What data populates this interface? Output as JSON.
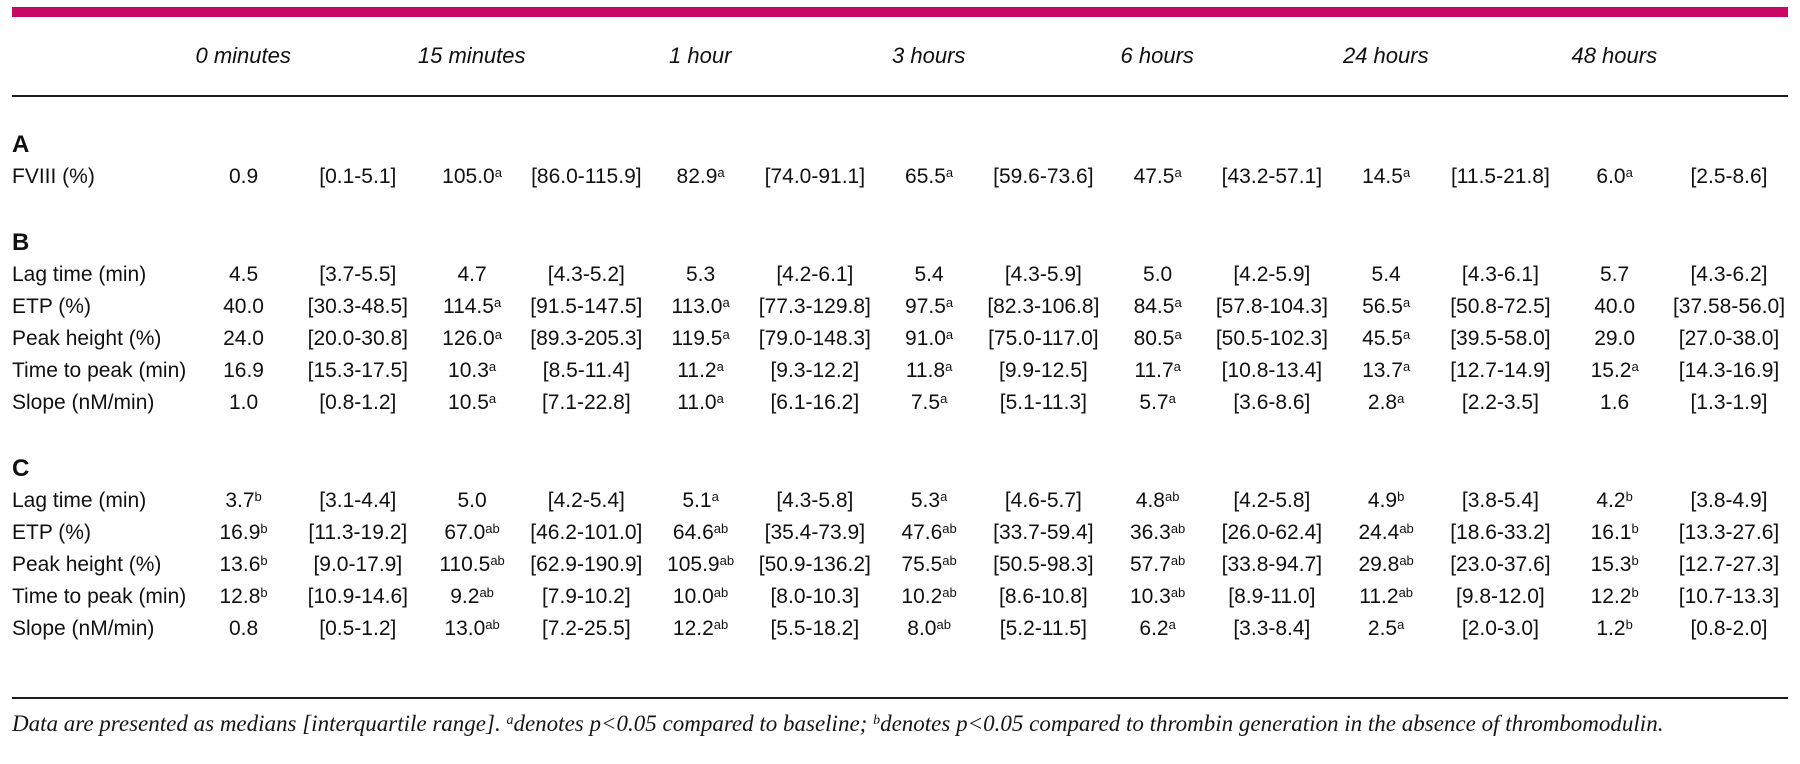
{
  "accent_color": "#C70963",
  "table": {
    "columns": [
      "0 minutes",
      "15 minutes",
      "1 hour",
      "3 hours",
      "6 hours",
      "24 hours",
      "48 hours"
    ],
    "sections": [
      {
        "label": "A",
        "rows": [
          {
            "label": "FVIII (%)",
            "cells": [
              [
                "0.9",
                "",
                "[0.1-5.1]"
              ],
              [
                "105.0",
                "a",
                "[86.0-115.9]"
              ],
              [
                "82.9",
                "a",
                "[74.0-91.1]"
              ],
              [
                "65.5",
                "a",
                "[59.6-73.6]"
              ],
              [
                "47.5",
                "a",
                "[43.2-57.1]"
              ],
              [
                "14.5",
                "a",
                "[11.5-21.8]"
              ],
              [
                "6.0",
                "a",
                "[2.5-8.6]"
              ]
            ]
          }
        ]
      },
      {
        "label": "B",
        "rows": [
          {
            "label": "Lag time (min)",
            "cells": [
              [
                "4.5",
                "",
                "[3.7-5.5]"
              ],
              [
                "4.7",
                "",
                "[4.3-5.2]"
              ],
              [
                "5.3",
                "",
                "[4.2-6.1]"
              ],
              [
                "5.4",
                "",
                "[4.3-5.9]"
              ],
              [
                "5.0",
                "",
                "[4.2-5.9]"
              ],
              [
                "5.4",
                "",
                "[4.3-6.1]"
              ],
              [
                "5.7",
                "",
                "[4.3-6.2]"
              ]
            ]
          },
          {
            "label": "ETP (%)",
            "cells": [
              [
                "40.0",
                "",
                "[30.3-48.5]"
              ],
              [
                "114.5",
                "a",
                "[91.5-147.5]"
              ],
              [
                "113.0",
                "a",
                "[77.3-129.8]"
              ],
              [
                "97.5",
                "a",
                "[82.3-106.8]"
              ],
              [
                "84.5",
                "a",
                "[57.8-104.3]"
              ],
              [
                "56.5",
                "a",
                "[50.8-72.5]"
              ],
              [
                "40.0",
                "",
                "[37.58-56.0]"
              ]
            ]
          },
          {
            "label": "Peak height (%)",
            "cells": [
              [
                "24.0",
                "",
                "[20.0-30.8]"
              ],
              [
                "126.0",
                "a",
                "[89.3-205.3]"
              ],
              [
                "119.5",
                "a",
                "[79.0-148.3]"
              ],
              [
                "91.0",
                "a",
                "[75.0-117.0]"
              ],
              [
                "80.5",
                "a",
                "[50.5-102.3]"
              ],
              [
                "45.5",
                "a",
                "[39.5-58.0]"
              ],
              [
                "29.0",
                "",
                "[27.0-38.0]"
              ]
            ]
          },
          {
            "label": "Time to peak (min)",
            "cells": [
              [
                "16.9",
                "",
                "[15.3-17.5]"
              ],
              [
                "10.3",
                "a",
                "[8.5-11.4]"
              ],
              [
                "11.2",
                "a",
                "[9.3-12.2]"
              ],
              [
                "11.8",
                "a",
                "[9.9-12.5]"
              ],
              [
                "11.7",
                "a",
                "[10.8-13.4]"
              ],
              [
                "13.7",
                "a",
                "[12.7-14.9]"
              ],
              [
                "15.2",
                "a",
                "[14.3-16.9]"
              ]
            ]
          },
          {
            "label": "Slope (nM/min)",
            "cells": [
              [
                "1.0",
                "",
                "[0.8-1.2]"
              ],
              [
                "10.5",
                "a",
                "[7.1-22.8]"
              ],
              [
                "11.0",
                "a",
                "[6.1-16.2]"
              ],
              [
                "7.5",
                "a",
                "[5.1-11.3]"
              ],
              [
                "5.7",
                "a",
                "[3.6-8.6]"
              ],
              [
                "2.8",
                "a",
                "[2.2-3.5]"
              ],
              [
                "1.6",
                "",
                "[1.3-1.9]"
              ]
            ]
          }
        ]
      },
      {
        "label": "C",
        "rows": [
          {
            "label": "Lag time (min)",
            "cells": [
              [
                "3.7",
                "b",
                "[3.1-4.4]"
              ],
              [
                "5.0",
                "",
                "[4.2-5.4]"
              ],
              [
                "5.1",
                "a",
                "[4.3-5.8]"
              ],
              [
                "5.3",
                "a",
                "[4.6-5.7]"
              ],
              [
                "4.8",
                "ab",
                "[4.2-5.8]"
              ],
              [
                "4.9",
                "b",
                "[3.8-5.4]"
              ],
              [
                "4.2",
                "b",
                "[3.8-4.9]"
              ]
            ]
          },
          {
            "label": "ETP (%)",
            "cells": [
              [
                "16.9",
                "b",
                "[11.3-19.2]"
              ],
              [
                "67.0",
                "ab",
                "[46.2-101.0]"
              ],
              [
                "64.6",
                "ab",
                "[35.4-73.9]"
              ],
              [
                "47.6",
                "ab",
                "[33.7-59.4]"
              ],
              [
                "36.3",
                "ab",
                "[26.0-62.4]"
              ],
              [
                "24.4",
                "ab",
                "[18.6-33.2]"
              ],
              [
                "16.1",
                "b",
                "[13.3-27.6]"
              ]
            ]
          },
          {
            "label": "Peak height (%)",
            "cells": [
              [
                "13.6",
                "b",
                "[9.0-17.9]"
              ],
              [
                "110.5",
                "ab",
                "[62.9-190.9]"
              ],
              [
                "105.9",
                "ab",
                "[50.9-136.2]"
              ],
              [
                "75.5",
                "ab",
                "[50.5-98.3]"
              ],
              [
                "57.7",
                "ab",
                "[33.8-94.7]"
              ],
              [
                "29.8",
                "ab",
                "[23.0-37.6]"
              ],
              [
                "15.3",
                "b",
                "[12.7-27.3]"
              ]
            ]
          },
          {
            "label": "Time to peak (min)",
            "cells": [
              [
                "12.8",
                "b",
                "[10.9-14.6]"
              ],
              [
                "9.2",
                "ab",
                "[7.9-10.2]"
              ],
              [
                "10.0",
                "ab",
                "[8.0-10.3]"
              ],
              [
                "10.2",
                "ab",
                "[8.6-10.8]"
              ],
              [
                "10.3",
                "ab",
                "[8.9-11.0]"
              ],
              [
                "11.2",
                "ab",
                "[9.8-12.0]"
              ],
              [
                "12.2",
                "b",
                "[10.7-13.3]"
              ]
            ]
          },
          {
            "label": "Slope (nM/min)",
            "cells": [
              [
                "0.8",
                "",
                "[0.5-1.2]"
              ],
              [
                "13.0",
                "ab",
                "[7.2-25.5]"
              ],
              [
                "12.2",
                "ab",
                "[5.5-18.2]"
              ],
              [
                "8.0",
                "ab",
                "[5.2-11.5]"
              ],
              [
                "6.2",
                "a",
                "[3.3-8.4]"
              ],
              [
                "2.5",
                "a",
                "[2.0-3.0]"
              ],
              [
                "1.2",
                "b",
                "[0.8-2.0]"
              ]
            ]
          }
        ]
      }
    ]
  },
  "footnote": {
    "part1": "Data are presented as medians [interquartile range]. ",
    "sup1": "a",
    "part2": "denotes p<0.05 compared to baseline; ",
    "sup2": "b",
    "part3": "denotes p<0.05 compared to thrombin generation in the absence of thrombomodulin."
  }
}
